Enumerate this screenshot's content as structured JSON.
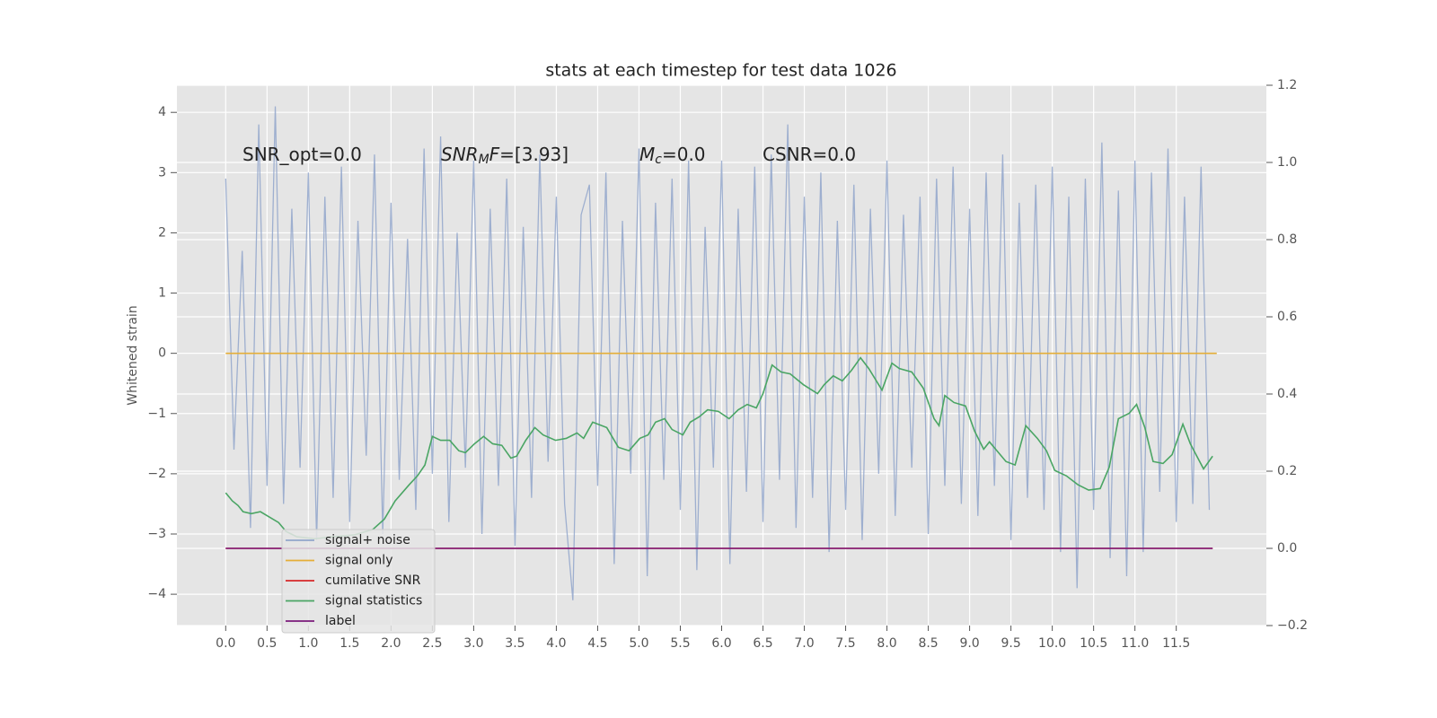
{
  "chart_data": {
    "type": "line",
    "title": "stats at each timestep for test data 1026",
    "y_label": "Whitened strain",
    "annotations": [
      {
        "parts": [
          {
            "text": "SNR_opt=0.0",
            "style": "normal"
          }
        ]
      },
      {
        "parts": [
          {
            "text": "SNR",
            "style": "italic"
          },
          {
            "text": "M",
            "style": "italic-sub"
          },
          {
            "text": "F",
            "style": "italic"
          },
          {
            "text": "=[3.93]",
            "style": "normal"
          }
        ]
      },
      {
        "parts": [
          {
            "text": "M",
            "style": "italic"
          },
          {
            "text": "c",
            "style": "italic-sub"
          },
          {
            "text": "=0.0",
            "style": "normal"
          }
        ]
      },
      {
        "parts": [
          {
            "text": "CSNR=0.0",
            "style": "normal"
          }
        ]
      }
    ],
    "xlim": [
      -0.59,
      12.59
    ],
    "ylim": [
      -4.52,
      4.45
    ],
    "y2lim": [
      -0.2,
      1.2
    ],
    "xticks": [
      {
        "value": 0,
        "label": "0.0"
      },
      {
        "value": 0.5,
        "label": "0.5"
      },
      {
        "value": 1,
        "label": "1.0"
      },
      {
        "value": 1.5,
        "label": "1.5"
      },
      {
        "value": 2,
        "label": "2.0"
      },
      {
        "value": 2.5,
        "label": "2.5"
      },
      {
        "value": 3,
        "label": "3.0"
      },
      {
        "value": 3.5,
        "label": "3.5"
      },
      {
        "value": 4,
        "label": "4.0"
      },
      {
        "value": 4.5,
        "label": "4.5"
      },
      {
        "value": 5,
        "label": "5.0"
      },
      {
        "value": 5.5,
        "label": "5.5"
      },
      {
        "value": 6,
        "label": "6.0"
      },
      {
        "value": 6.5,
        "label": "6.5"
      },
      {
        "value": 7,
        "label": "7.0"
      },
      {
        "value": 7.5,
        "label": "7.5"
      },
      {
        "value": 8,
        "label": "8.0"
      },
      {
        "value": 8.5,
        "label": "8.5"
      },
      {
        "value": 9,
        "label": "9.0"
      },
      {
        "value": 9.5,
        "label": "9.5"
      },
      {
        "value": 10,
        "label": "10.0"
      },
      {
        "value": 10.5,
        "label": "10.5"
      },
      {
        "value": 11,
        "label": "11.0"
      },
      {
        "value": 11.5,
        "label": "11.5"
      }
    ],
    "yticks": [
      {
        "value": -4,
        "label": "−4"
      },
      {
        "value": -3,
        "label": "−3"
      },
      {
        "value": -2,
        "label": "−2"
      },
      {
        "value": -1,
        "label": "−1"
      },
      0,
      1,
      2,
      3,
      4
    ],
    "y2ticks": [
      {
        "value": -0.2,
        "label": "−0.2"
      },
      {
        "value": 0,
        "label": "0.0"
      },
      {
        "value": 0.2,
        "label": "0.2"
      },
      {
        "value": 0.4,
        "label": "0.4"
      },
      {
        "value": 0.6,
        "label": "0.6"
      },
      {
        "value": 0.8,
        "label": "0.8"
      },
      {
        "value": 1,
        "label": "1.0"
      },
      {
        "value": 1.2,
        "label": "1.2"
      }
    ],
    "grid": true,
    "legend": "lower left",
    "series": [
      {
        "name": "signal+ noise",
        "color": "#92a6cb",
        "axis": "y",
        "x": [
          0.0,
          0.1,
          0.2,
          0.3,
          0.4,
          0.5,
          0.6,
          0.7,
          0.8,
          0.9,
          1.0,
          1.1,
          1.2,
          1.3,
          1.4,
          1.5,
          1.6,
          1.7,
          1.8,
          1.9,
          2.0,
          2.1,
          2.2,
          2.3,
          2.4,
          2.5,
          2.6,
          2.7,
          2.8,
          2.9,
          3.0,
          3.1,
          3.2,
          3.3,
          3.4,
          3.5,
          3.6,
          3.7,
          3.8,
          3.9,
          4.0,
          4.1,
          4.2,
          4.3,
          4.4,
          4.5,
          4.6,
          4.7,
          4.8,
          4.9,
          5.0,
          5.1,
          5.2,
          5.3,
          5.4,
          5.5,
          5.6,
          5.7,
          5.8,
          5.9,
          6.0,
          6.1,
          6.2,
          6.3,
          6.4,
          6.5,
          6.6,
          6.7,
          6.8,
          6.9,
          7.0,
          7.1,
          7.2,
          7.3,
          7.4,
          7.5,
          7.6,
          7.7,
          7.8,
          7.9,
          8.0,
          8.1,
          8.2,
          8.3,
          8.4,
          8.5,
          8.6,
          8.7,
          8.8,
          8.9,
          9.0,
          9.1,
          9.2,
          9.3,
          9.4,
          9.5,
          9.6,
          9.7,
          9.8,
          9.9,
          10.0,
          10.1,
          10.2,
          10.3,
          10.4,
          10.5,
          10.6,
          10.7,
          10.8,
          10.9,
          11.0,
          11.1,
          11.2,
          11.3,
          11.4,
          11.5,
          11.6,
          11.7,
          11.8,
          11.9
        ],
        "values": [
          2.9,
          -1.6,
          1.7,
          -2.9,
          3.8,
          -2.2,
          4.1,
          -2.5,
          2.4,
          -1.9,
          3.0,
          -3.1,
          2.6,
          -2.4,
          3.1,
          -2.8,
          2.2,
          -1.7,
          3.3,
          -3.0,
          2.5,
          -2.1,
          1.9,
          -2.6,
          3.4,
          -2.0,
          3.6,
          -2.8,
          2.0,
          -1.9,
          3.2,
          -3.0,
          2.4,
          -2.2,
          2.9,
          -3.2,
          2.1,
          -2.4,
          3.3,
          -1.8,
          2.6,
          -2.5,
          -4.1,
          2.3,
          2.8,
          -2.2,
          3.0,
          -3.5,
          2.2,
          -2.0,
          3.4,
          -3.7,
          2.5,
          -2.1,
          2.9,
          -2.6,
          3.2,
          -3.6,
          2.1,
          -1.9,
          3.2,
          -3.5,
          2.4,
          -2.3,
          3.1,
          -2.8,
          3.3,
          -2.1,
          3.8,
          -2.9,
          2.6,
          -2.4,
          3.0,
          -3.3,
          2.2,
          -2.6,
          2.8,
          -3.1,
          2.4,
          -2.0,
          3.2,
          -2.7,
          2.3,
          -1.9,
          2.6,
          -3.0,
          2.9,
          -2.2,
          3.1,
          -2.5,
          2.4,
          -2.7,
          3.0,
          -2.2,
          3.3,
          -3.1,
          2.5,
          -2.4,
          2.8,
          -2.6,
          3.1,
          -3.3,
          2.6,
          -3.9,
          2.9,
          -2.6,
          3.5,
          -3.4,
          2.7,
          -3.7,
          3.2,
          -3.3,
          3.0,
          -2.3,
          3.4,
          -2.8,
          2.6,
          -2.5,
          3.1,
          -2.6
        ]
      },
      {
        "name": "signal only",
        "color": "#e5ae38",
        "axis": "y",
        "x": [
          0,
          11.99
        ],
        "values": [
          0,
          0
        ]
      },
      {
        "name": "cumilative SNR",
        "color": "#d62728",
        "axis": "y2",
        "x": [
          0,
          11.94
        ],
        "values": [
          0,
          0
        ]
      },
      {
        "name": "signal statistics",
        "color": "#4aa564",
        "axis": "y2",
        "x": [
          0,
          0.08,
          0.15,
          0.21,
          0.31,
          0.42,
          0.53,
          0.64,
          0.73,
          0.86,
          1.08,
          1.29,
          1.56,
          1.78,
          1.92,
          2.05,
          2.22,
          2.32,
          2.41,
          2.5,
          2.6,
          2.71,
          2.82,
          2.9,
          3.01,
          3.12,
          3.23,
          3.34,
          3.45,
          3.52,
          3.63,
          3.74,
          3.84,
          3.99,
          4.12,
          4.25,
          4.33,
          4.44,
          4.61,
          4.75,
          4.88,
          5.01,
          5.11,
          5.2,
          5.31,
          5.4,
          5.53,
          5.62,
          5.73,
          5.83,
          5.96,
          6.09,
          6.2,
          6.31,
          6.42,
          6.5,
          6.61,
          6.72,
          6.83,
          6.99,
          7.16,
          7.24,
          7.35,
          7.46,
          7.57,
          7.68,
          7.78,
          7.94,
          8.06,
          8.15,
          8.3,
          8.44,
          8.57,
          8.63,
          8.7,
          8.81,
          8.95,
          9.06,
          9.17,
          9.24,
          9.35,
          9.44,
          9.55,
          9.68,
          9.82,
          9.93,
          10.03,
          10.17,
          10.31,
          10.44,
          10.58,
          10.69,
          10.8,
          10.93,
          11.02,
          11.12,
          11.22,
          11.34,
          11.45,
          11.58,
          11.67,
          11.83,
          11.94
        ],
        "values": [
          0.144,
          0.123,
          0.111,
          0.095,
          0.09,
          0.095,
          0.081,
          0.067,
          0.044,
          0.03,
          0.025,
          0.03,
          0.035,
          0.049,
          0.076,
          0.123,
          0.165,
          0.188,
          0.216,
          0.29,
          0.28,
          0.28,
          0.253,
          0.248,
          0.271,
          0.29,
          0.271,
          0.267,
          0.234,
          0.239,
          0.28,
          0.313,
          0.294,
          0.28,
          0.285,
          0.299,
          0.285,
          0.327,
          0.313,
          0.262,
          0.253,
          0.285,
          0.294,
          0.327,
          0.336,
          0.308,
          0.294,
          0.327,
          0.341,
          0.359,
          0.355,
          0.336,
          0.359,
          0.373,
          0.364,
          0.401,
          0.475,
          0.457,
          0.452,
          0.424,
          0.401,
          0.424,
          0.447,
          0.434,
          0.461,
          0.494,
          0.466,
          0.41,
          0.48,
          0.466,
          0.457,
          0.415,
          0.336,
          0.318,
          0.396,
          0.378,
          0.369,
          0.304,
          0.257,
          0.276,
          0.248,
          0.225,
          0.216,
          0.318,
          0.285,
          0.253,
          0.202,
          0.188,
          0.165,
          0.151,
          0.155,
          0.211,
          0.336,
          0.35,
          0.373,
          0.313,
          0.225,
          0.22,
          0.243,
          0.322,
          0.271,
          0.206,
          0.239
        ]
      },
      {
        "name": "label",
        "color": "#7b1a7b",
        "axis": "y2",
        "x": [
          0,
          11.94
        ],
        "values": [
          0,
          0
        ]
      }
    ]
  }
}
